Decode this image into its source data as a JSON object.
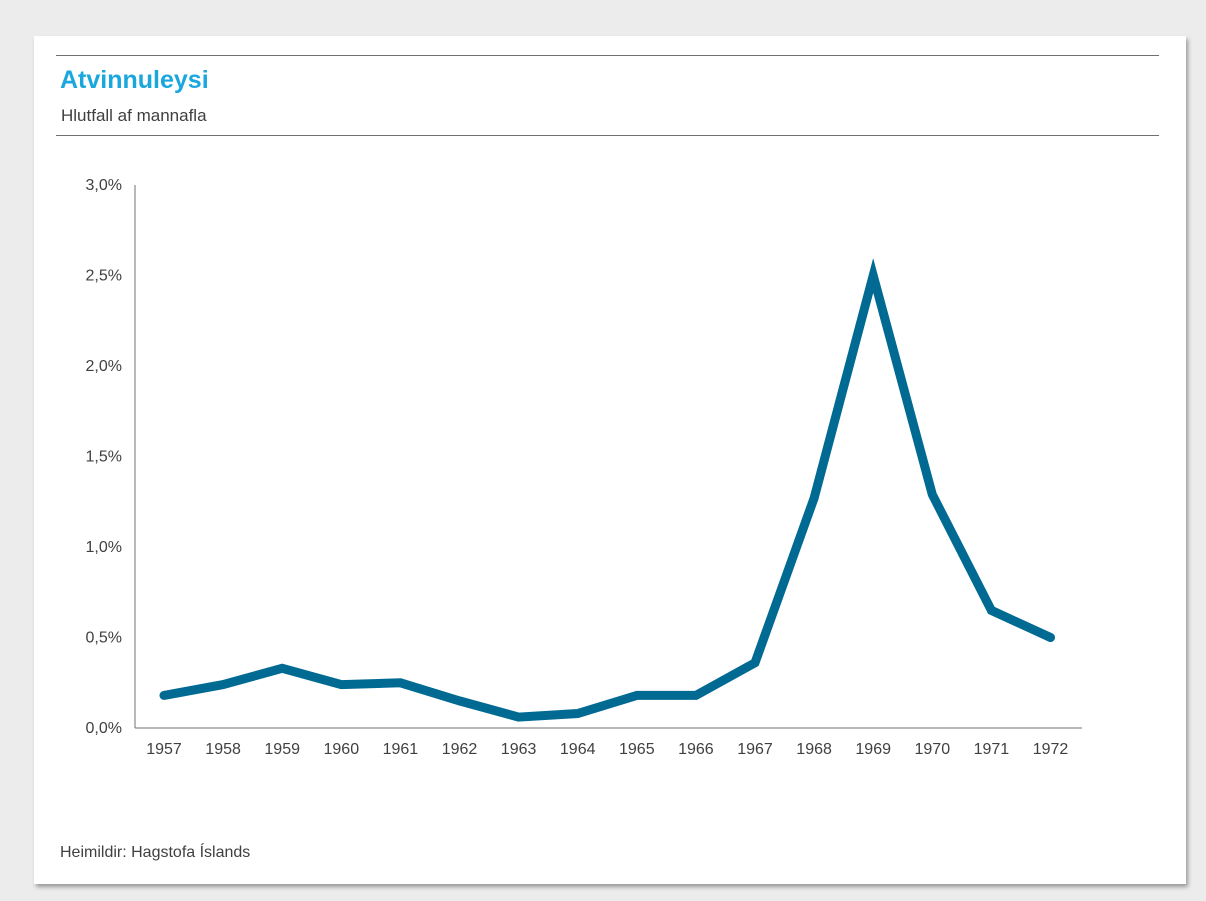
{
  "header": {
    "title": "Atvinnuleysi",
    "subtitle": "Hlutfall af mannafla"
  },
  "footer": {
    "source": "Heimildir: Hagstofa Íslands"
  },
  "colors": {
    "title": "#1aa7dd",
    "line": "#006a93",
    "text": "#404040",
    "axis": "#707070"
  },
  "chart_data": {
    "type": "line",
    "title": "Atvinnuleysi",
    "subtitle": "Hlutfall af mannafla",
    "xlabel": "",
    "ylabel": "",
    "categories": [
      "1957",
      "1958",
      "1959",
      "1960",
      "1961",
      "1962",
      "1963",
      "1964",
      "1965",
      "1966",
      "1967",
      "1968",
      "1969",
      "1970",
      "1971",
      "1972"
    ],
    "series": [
      {
        "values": [
          0.18,
          0.24,
          0.33,
          0.24,
          0.25,
          0.15,
          0.06,
          0.08,
          0.18,
          0.18,
          0.36,
          1.27,
          2.5,
          1.29,
          0.65,
          0.5
        ]
      }
    ],
    "ylim": [
      0,
      3.0
    ],
    "yticks": [
      0,
      0.5,
      1.0,
      1.5,
      2.0,
      2.5,
      3.0
    ],
    "ytick_labels": [
      "0,0%",
      "0,5%",
      "1,0%",
      "1,5%",
      "2,0%",
      "2,5%",
      "3,0%"
    ],
    "grid": false,
    "legend": "none"
  }
}
